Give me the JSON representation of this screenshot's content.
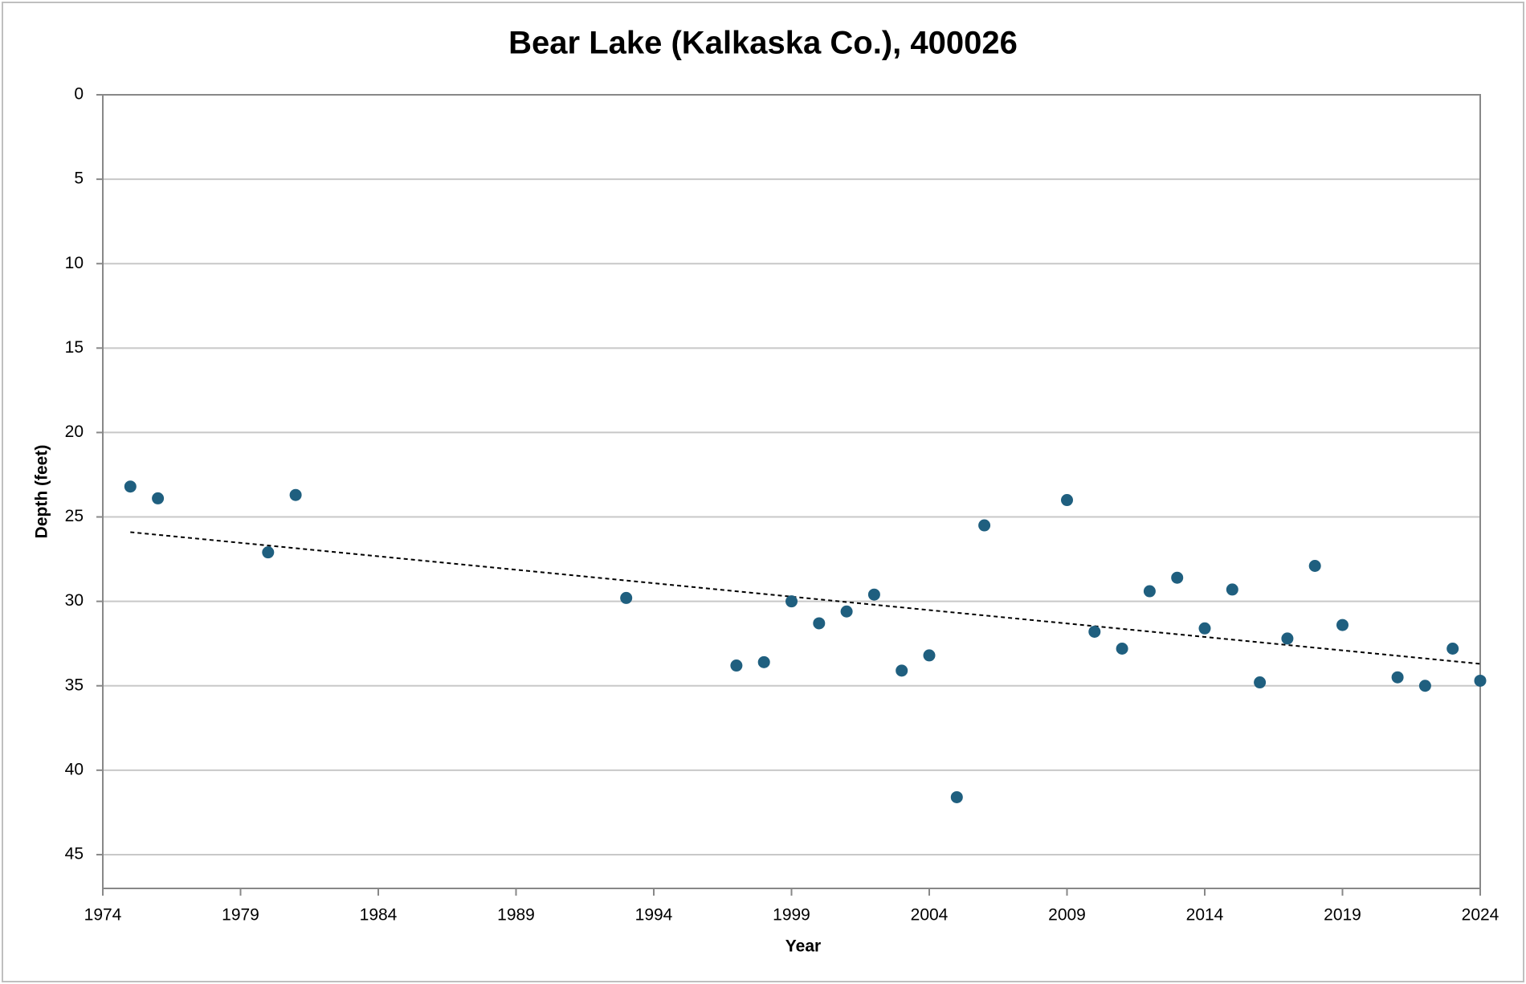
{
  "chart_data": {
    "type": "scatter",
    "title": "Bear Lake (Kalkaska Co.), 400026",
    "x_label": "Year",
    "y_label": "Depth (feet)",
    "x": [
      1975,
      1976,
      1980,
      1981,
      1993,
      1997,
      1998,
      1999,
      2000,
      2001,
      2002,
      2003,
      2004,
      2005,
      2006,
      2009,
      2010,
      2011,
      2012,
      2013,
      2014,
      2015,
      2016,
      2017,
      2018,
      2019,
      2021,
      2022,
      2023,
      2024
    ],
    "values": [
      23.2,
      23.9,
      27.1,
      23.7,
      29.8,
      33.8,
      33.6,
      30.0,
      31.3,
      30.6,
      29.6,
      34.1,
      33.2,
      41.6,
      25.5,
      24.0,
      31.8,
      32.8,
      29.4,
      28.6,
      31.6,
      29.3,
      34.8,
      32.2,
      27.9,
      31.4,
      34.5,
      35.0,
      32.8,
      34.7
    ],
    "color": "#1f5f7f",
    "trendline": {
      "x": [
        1975,
        2024
      ],
      "values": [
        25.9,
        33.7
      ],
      "color": "#000000"
    },
    "xlim": [
      1974,
      2024
    ],
    "xticks": [
      1974,
      1979,
      1984,
      1989,
      1994,
      1999,
      2004,
      2009,
      2014,
      2019,
      2024
    ],
    "ylim": [
      0,
      47
    ],
    "yticks": [
      0,
      5,
      10,
      15,
      20,
      25,
      30,
      35,
      40,
      45
    ],
    "y_inverted": true,
    "grid": true
  }
}
